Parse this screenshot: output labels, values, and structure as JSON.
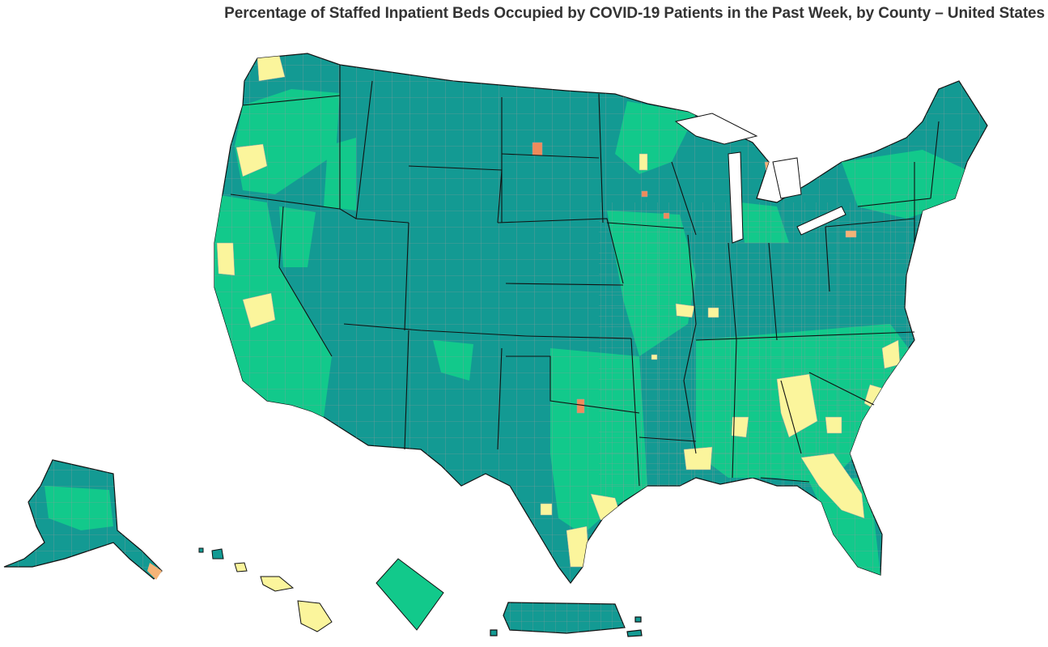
{
  "title": "Percentage of Staffed Inpatient Beds Occupied by COVID-19 Patients in the Past Week, by County – United States",
  "colors": {
    "teal": "#139a93",
    "green": "#12c98b",
    "yellow": "#fbf59c",
    "light_orange": "#f5b377",
    "orange": "#f08b5b",
    "county_border": "#9aa0a6",
    "state_border": "#111111"
  },
  "regions": [
    "contiguous-us",
    "alaska",
    "hawaii",
    "district-of-columbia",
    "puerto-rico"
  ]
}
